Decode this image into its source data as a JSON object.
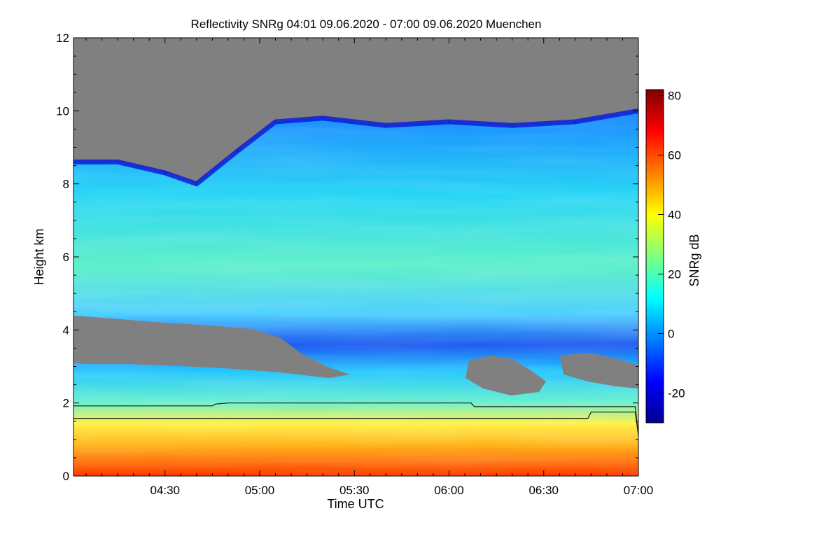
{
  "chart_data": {
    "type": "heatmap",
    "title": "Reflectivity SNRg   04:01 09.06.2020 - 07:00 09.06.2020 Muenchen",
    "xlabel": "Time UTC",
    "ylabel": "Height km",
    "x_unit": "UTC time",
    "x_range": [
      "04:01",
      "07:00"
    ],
    "x_ticks": [
      "04:30",
      "05:00",
      "05:30",
      "06:00",
      "06:30",
      "07:00"
    ],
    "ylim": [
      0,
      12
    ],
    "y_ticks": [
      "0",
      "2",
      "4",
      "6",
      "8",
      "10",
      "12"
    ],
    "colorbar": {
      "label": "SNRg dB",
      "range": [
        -30,
        82
      ],
      "ticks": [
        "-20",
        "0",
        "20",
        "40",
        "60",
        "80"
      ],
      "colormap": "jet",
      "missing_color": "#808080"
    },
    "echo_top_km": [
      {
        "time": "04:01",
        "height": 8.6
      },
      {
        "time": "04:15",
        "height": 8.6
      },
      {
        "time": "04:30",
        "height": 8.3
      },
      {
        "time": "04:40",
        "height": 8.0
      },
      {
        "time": "04:53",
        "height": 8.9
      },
      {
        "time": "05:05",
        "height": 9.7
      },
      {
        "time": "05:20",
        "height": 9.8
      },
      {
        "time": "05:40",
        "height": 9.6
      },
      {
        "time": "06:00",
        "height": 9.7
      },
      {
        "time": "06:20",
        "height": 9.6
      },
      {
        "time": "06:40",
        "height": 9.7
      },
      {
        "time": "07:00",
        "height": 10.0
      }
    ],
    "line_series": [
      {
        "values": [
          {
            "time": "04:01",
            "height": 1.92
          },
          {
            "time": "04:45",
            "height": 1.92
          },
          {
            "time": "04:46",
            "height": 1.97
          },
          {
            "time": "04:50",
            "height": 2.0
          },
          {
            "time": "06:07",
            "height": 2.0
          },
          {
            "time": "06:08",
            "height": 1.9
          },
          {
            "time": "06:59",
            "height": 1.9
          },
          {
            "time": "07:00",
            "height": 1.12
          }
        ]
      },
      {
        "values": [
          {
            "time": "04:01",
            "height": 1.58
          },
          {
            "time": "06:44",
            "height": 1.58
          },
          {
            "time": "06:45",
            "height": 1.75
          },
          {
            "time": "06:59",
            "height": 1.75
          },
          {
            "time": "07:00",
            "height": 1.12
          }
        ]
      }
    ],
    "grid": false
  }
}
